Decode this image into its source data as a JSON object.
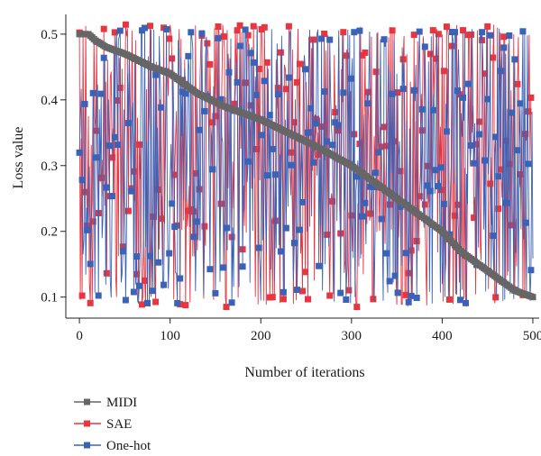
{
  "chart_data": {
    "type": "line",
    "xlabel": "Number of iterations",
    "ylabel": "Loss value",
    "xlim": [
      -15,
      507
    ],
    "ylim": [
      0.068,
      0.53
    ],
    "x_ticks": [
      0,
      100,
      200,
      300,
      400,
      500
    ],
    "y_ticks": [
      0.1,
      0.2,
      0.3,
      0.4,
      0.5
    ],
    "grid": false,
    "legend_position": "bottom-left",
    "series": [
      {
        "name": "MIDI",
        "color": "#666666",
        "marker": "square",
        "description_points": [
          [
            0,
            0.5
          ],
          [
            10,
            0.5
          ],
          [
            18,
            0.49
          ],
          [
            30,
            0.48
          ],
          [
            50,
            0.47
          ],
          [
            80,
            0.45
          ],
          [
            100,
            0.44
          ],
          [
            130,
            0.41
          ],
          [
            160,
            0.39
          ],
          [
            200,
            0.37
          ],
          [
            230,
            0.35
          ],
          [
            260,
            0.33
          ],
          [
            300,
            0.3
          ],
          [
            330,
            0.27
          ],
          [
            360,
            0.24
          ],
          [
            400,
            0.2
          ],
          [
            420,
            0.17
          ],
          [
            440,
            0.15
          ],
          [
            460,
            0.13
          ],
          [
            480,
            0.11
          ],
          [
            500,
            0.1
          ]
        ]
      },
      {
        "name": "SAE",
        "color": "#e8353f",
        "marker": "square",
        "range": [
          0.085,
          0.515
        ],
        "points": 500
      },
      {
        "name": "One-hot",
        "color": "#3a63b8",
        "marker": "square",
        "range": [
          0.09,
          0.51
        ],
        "points": 500
      }
    ]
  }
}
